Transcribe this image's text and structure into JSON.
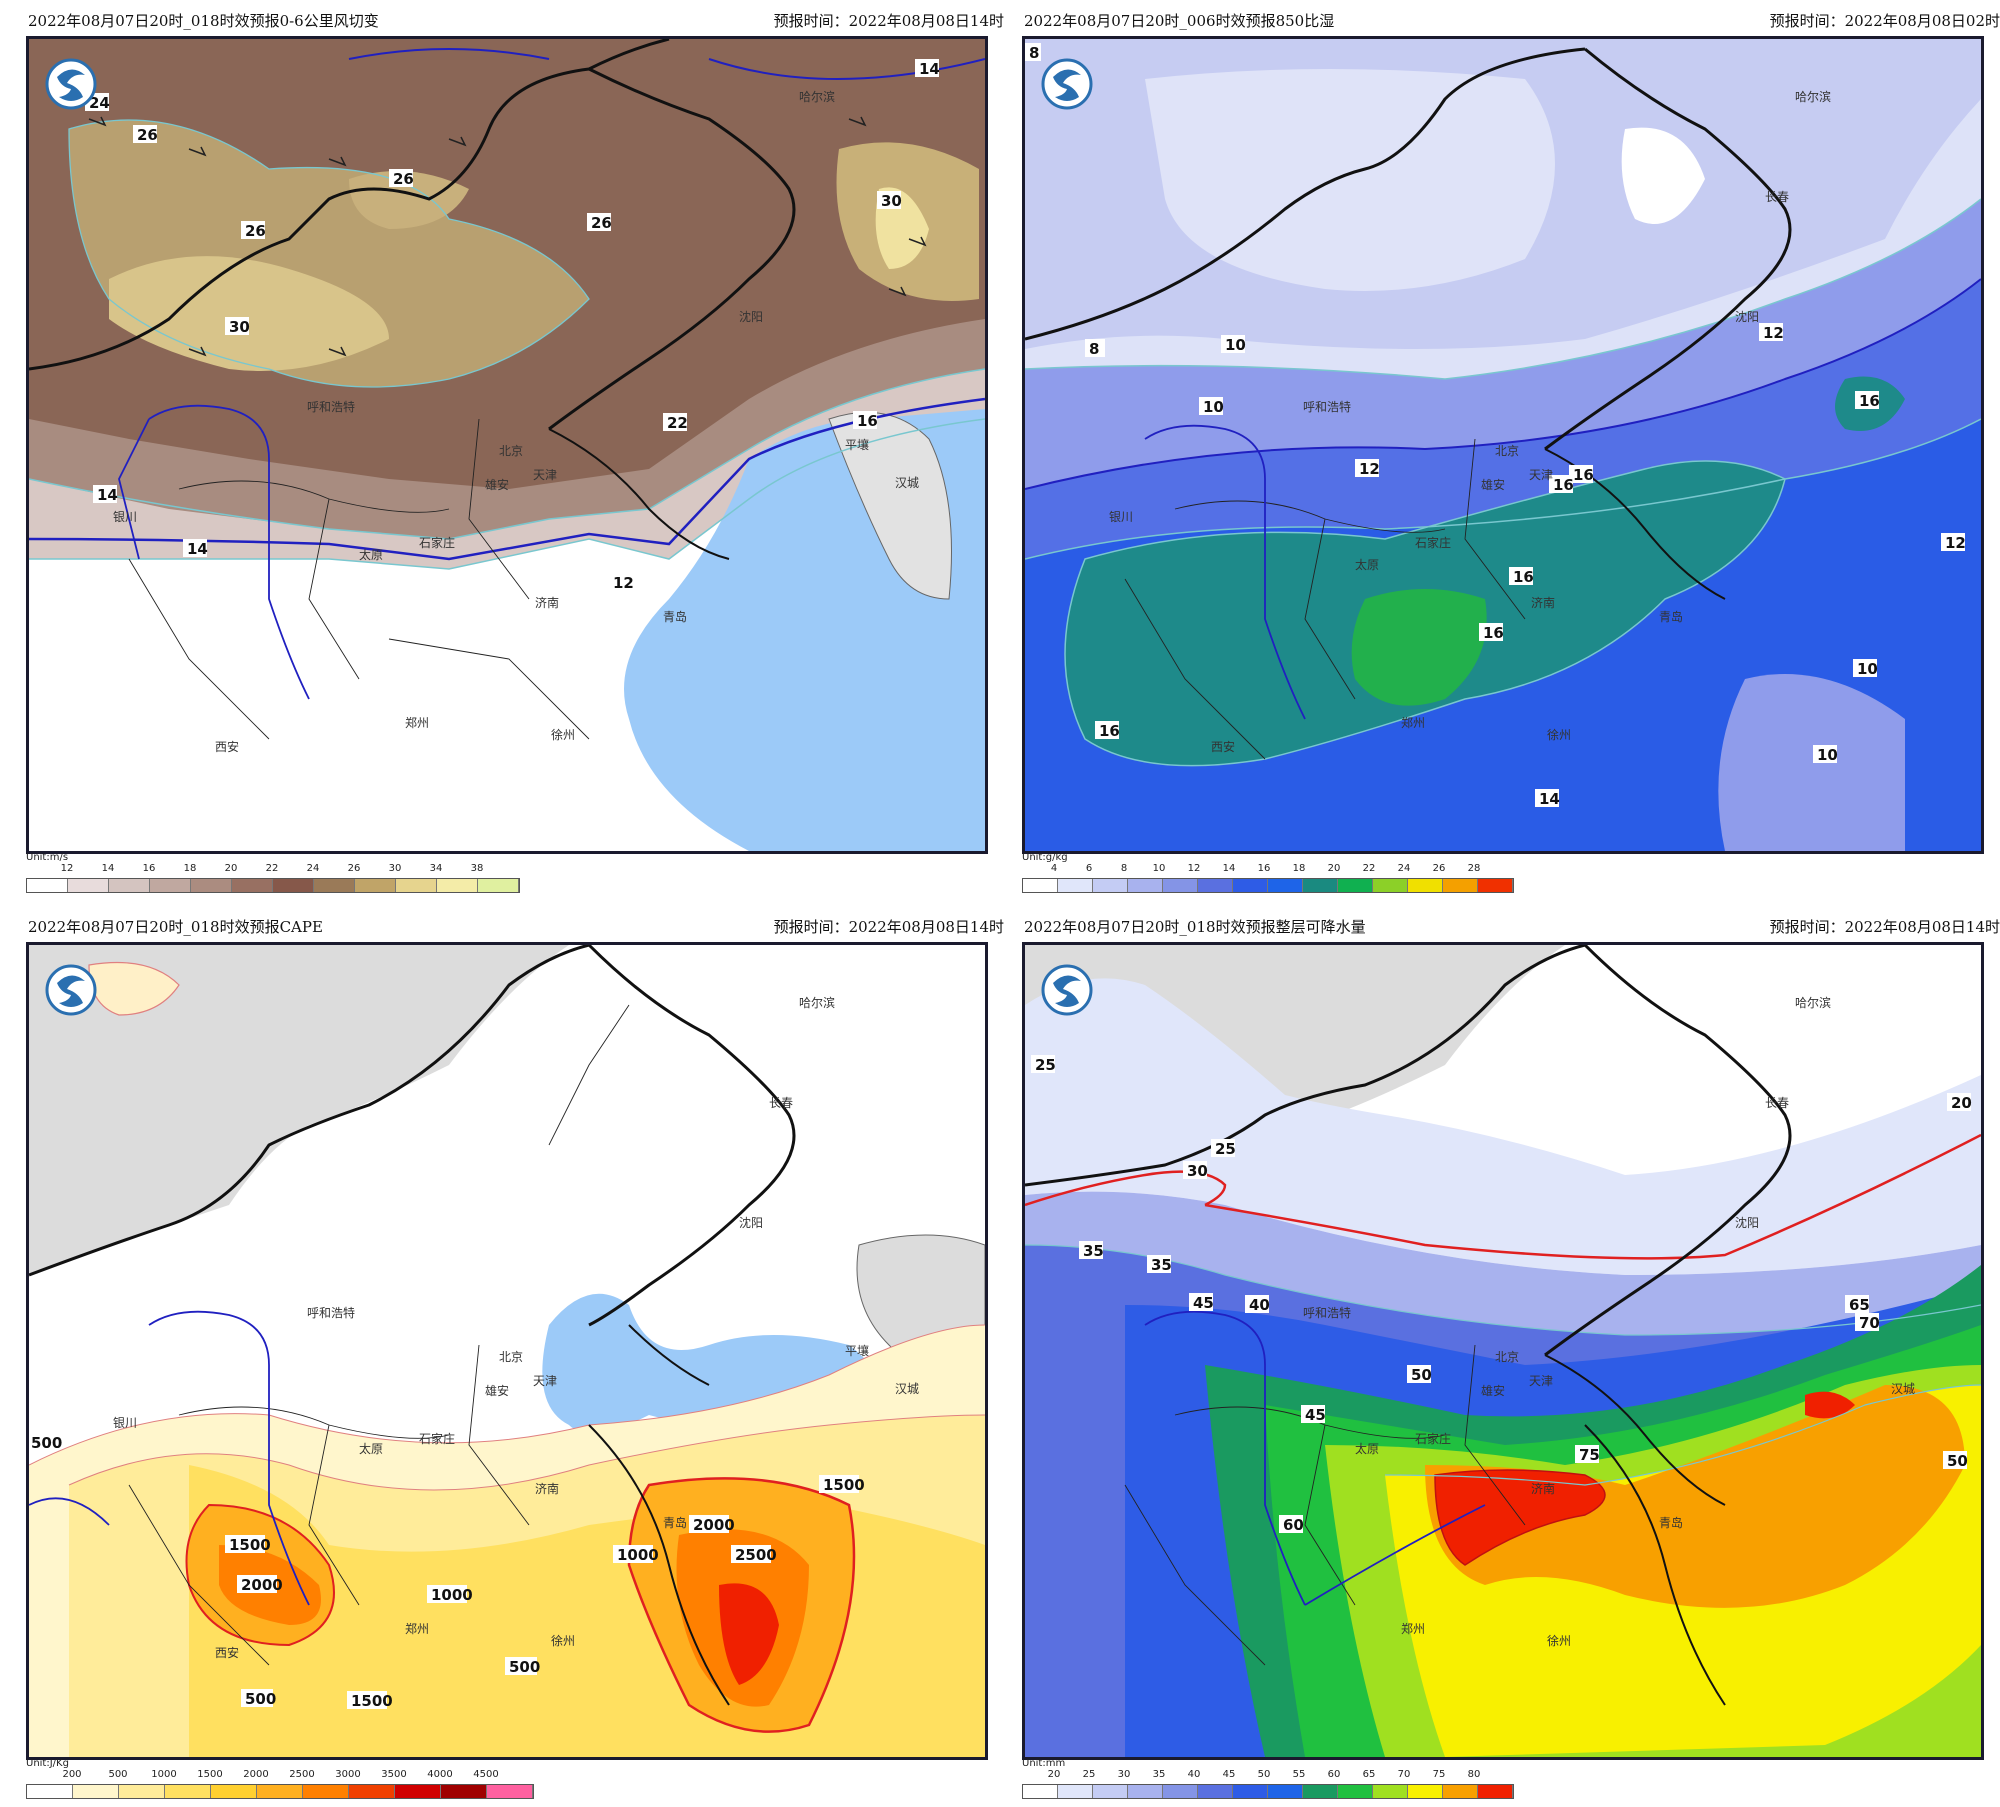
{
  "panels": [
    {
      "title": "2022年08月07日20时_018时效预报0-6公里风切变",
      "time": "预报时间：2022年08月08日14时",
      "unit": "Unit:m/s",
      "colorbar": {
        "labels": [
          "12",
          "14",
          "16",
          "18",
          "20",
          "22",
          "24",
          "26",
          "30",
          "34",
          "38"
        ],
        "colors": [
          "#ffffff",
          "#e8dcdc",
          "#d4c4c0",
          "#c0a8a0",
          "#ab8c80",
          "#987062",
          "#86584a",
          "#9a7a58",
          "#c0a468",
          "#e6d48e",
          "#f4eca8",
          "#e0f0a0"
        ]
      },
      "contour_labels": [
        "24",
        "26",
        "26",
        "26",
        "26",
        "30",
        "30",
        "22",
        "16",
        "14",
        "14",
        "12",
        "14"
      ],
      "cities": [
        "哈尔滨",
        "呼和浩特",
        "北京",
        "雄安",
        "天津",
        "平壤",
        "汉城",
        "石家庄",
        "太原",
        "银川",
        "济南",
        "郑州",
        "西安",
        "沈阳",
        "青岛",
        "徐州"
      ]
    },
    {
      "title": "2022年08月07日20时_006时效预报850比湿",
      "time": "预报时间：2022年08月08日02时",
      "unit": "Unit:g/kg",
      "colorbar": {
        "labels": [
          "4",
          "6",
          "8",
          "10",
          "12",
          "14",
          "16",
          "18",
          "20",
          "22",
          "24",
          "26",
          "28"
        ],
        "colors": [
          "#ffffff",
          "#e0e6fa",
          "#c4ccf4",
          "#a8b2ee",
          "#8494e6",
          "#5a70e0",
          "#2e5ce6",
          "#1e64e8",
          "#1a8a80",
          "#10b050",
          "#8cd028",
          "#f0e000",
          "#f4a000",
          "#f03000"
        ]
      },
      "contour_labels": [
        "8",
        "8",
        "10",
        "10",
        "12",
        "12",
        "16",
        "16",
        "16",
        "16",
        "16",
        "14",
        "10",
        "10",
        "12",
        "16"
      ],
      "cities": [
        "哈尔滨",
        "长春",
        "沈阳",
        "呼和浩特",
        "北京",
        "雄安",
        "天津",
        "石家庄",
        "太原",
        "银川",
        "西安",
        "郑州",
        "济南",
        "徐州",
        "青岛"
      ]
    },
    {
      "title": "2022年08月07日20时_018时效预报CAPE",
      "time": "预报时间：2022年08月08日14时",
      "unit": "Unit:J/Kg",
      "colorbar": {
        "labels": [
          "200",
          "500",
          "1000",
          "1500",
          "2000",
          "2500",
          "3000",
          "3500",
          "4000",
          "4500"
        ],
        "colors": [
          "#ffffff",
          "#fff6cc",
          "#ffec9a",
          "#ffe060",
          "#ffd030",
          "#ffb020",
          "#ff8000",
          "#f04000",
          "#d00000",
          "#a00000",
          "#ff60a0"
        ]
      },
      "contour_labels": [
        "1500",
        "2000",
        "1000",
        "1000",
        "2000",
        "2500",
        "1500",
        "500",
        "500",
        "1500",
        "500"
      ],
      "cities": [
        "哈尔滨",
        "长春",
        "沈阳",
        "呼和浩特",
        "北京",
        "雄安",
        "天津",
        "平壤",
        "汉城",
        "石家庄",
        "太原",
        "银川",
        "济南",
        "郑州",
        "西安",
        "青岛",
        "徐州"
      ]
    },
    {
      "title": "2022年08月07日20时_018时效预报整层可降水量",
      "time": "预报时间：2022年08月08日14时",
      "unit": "Unit:mm",
      "colorbar": {
        "labels": [
          "20",
          "25",
          "30",
          "35",
          "40",
          "45",
          "50",
          "55",
          "60",
          "65",
          "70",
          "75",
          "80"
        ],
        "colors": [
          "#ffffff",
          "#e0e6fa",
          "#c4ccf4",
          "#a8b2ee",
          "#8494e6",
          "#5a70e0",
          "#2e5ce6",
          "#1e64e8",
          "#1a9a60",
          "#20c040",
          "#a0e020",
          "#f8f000",
          "#f8a000",
          "#f02000"
        ]
      },
      "contour_labels": [
        "25",
        "25",
        "30",
        "35",
        "35",
        "45",
        "40",
        "50",
        "45",
        "60",
        "65",
        "70",
        "75",
        "50",
        "20"
      ],
      "cities": [
        "哈尔滨",
        "长春",
        "沈阳",
        "呼和浩特",
        "北京",
        "雄安",
        "天津",
        "石家庄",
        "太原",
        "郑州",
        "济南",
        "徐州",
        "青岛",
        "汉城"
      ]
    }
  ]
}
